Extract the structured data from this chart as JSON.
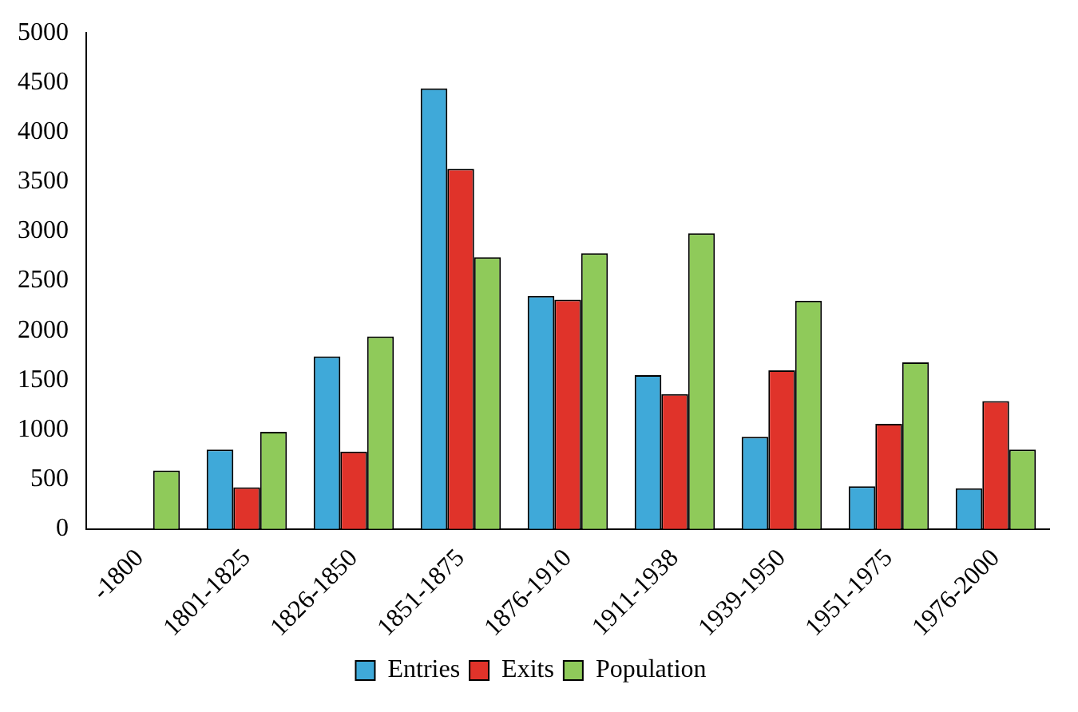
{
  "chart_data": {
    "type": "bar",
    "categories": [
      "-1800",
      "1801-1825",
      "1826-1850",
      "1851-1875",
      "1876-1910",
      "1911-1938",
      "1939-1950",
      "1951-1975",
      "1976-2000"
    ],
    "series": [
      {
        "name": "Entries",
        "color": "#3fa9d9",
        "values": [
          null,
          800,
          1740,
          4440,
          2350,
          1550,
          930,
          430,
          410
        ]
      },
      {
        "name": "Exits",
        "color": "#e0332a",
        "values": [
          null,
          420,
          780,
          3630,
          2310,
          1360,
          1600,
          1060,
          1290
        ]
      },
      {
        "name": "Population",
        "color": "#8fca5a",
        "values": [
          590,
          980,
          1940,
          2740,
          2780,
          2980,
          2300,
          1680,
          800
        ]
      }
    ],
    "ylim": [
      0,
      5000
    ],
    "yticks": [
      0,
      500,
      1000,
      1500,
      2000,
      2500,
      3000,
      3500,
      4000,
      4500,
      5000
    ],
    "grid": false,
    "legend": "bottom"
  }
}
